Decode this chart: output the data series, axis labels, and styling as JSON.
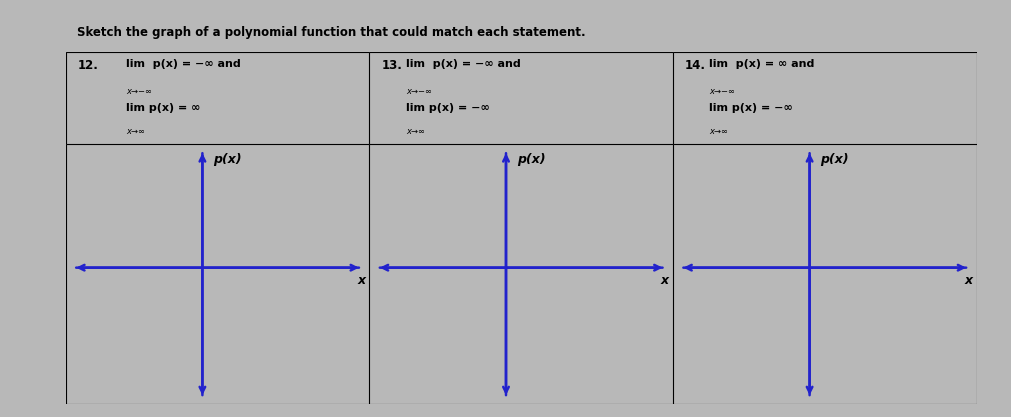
{
  "background_color": "#b8b8b8",
  "content_bg": "#d0d0d0",
  "title_bg": "#8888bb",
  "title_text": "Sketch the graph of a polynomial function that could match each statement.",
  "title_fontsize": 8.5,
  "title_color": "black",
  "border_color": "black",
  "axis_color": "#2222cc",
  "axis_lw": 1.8,
  "problems": [
    {
      "number": "12.",
      "top_lim": "lim  p(x) = −∞ and",
      "top_sub": "x→−∞",
      "bot_lim": "lim p(x) = ∞",
      "bot_sub": "x→∞"
    },
    {
      "number": "13.",
      "top_lim": "lim  p(x) = −∞ and",
      "top_sub": "x→−∞",
      "bot_lim": "lim p(x) = −∞",
      "bot_sub": "x→∞"
    },
    {
      "number": "14.",
      "top_lim": "lim  p(x) = ∞ and",
      "top_sub": "x→−∞",
      "bot_lim": "lim p(x) = −∞",
      "bot_sub": "x→∞"
    }
  ],
  "px_label": "p(x)",
  "x_label": "x",
  "text_fontsize": 8.0,
  "sub_fontsize": 6.0,
  "label_fontsize": 9.0,
  "num_fontsize": 8.5
}
